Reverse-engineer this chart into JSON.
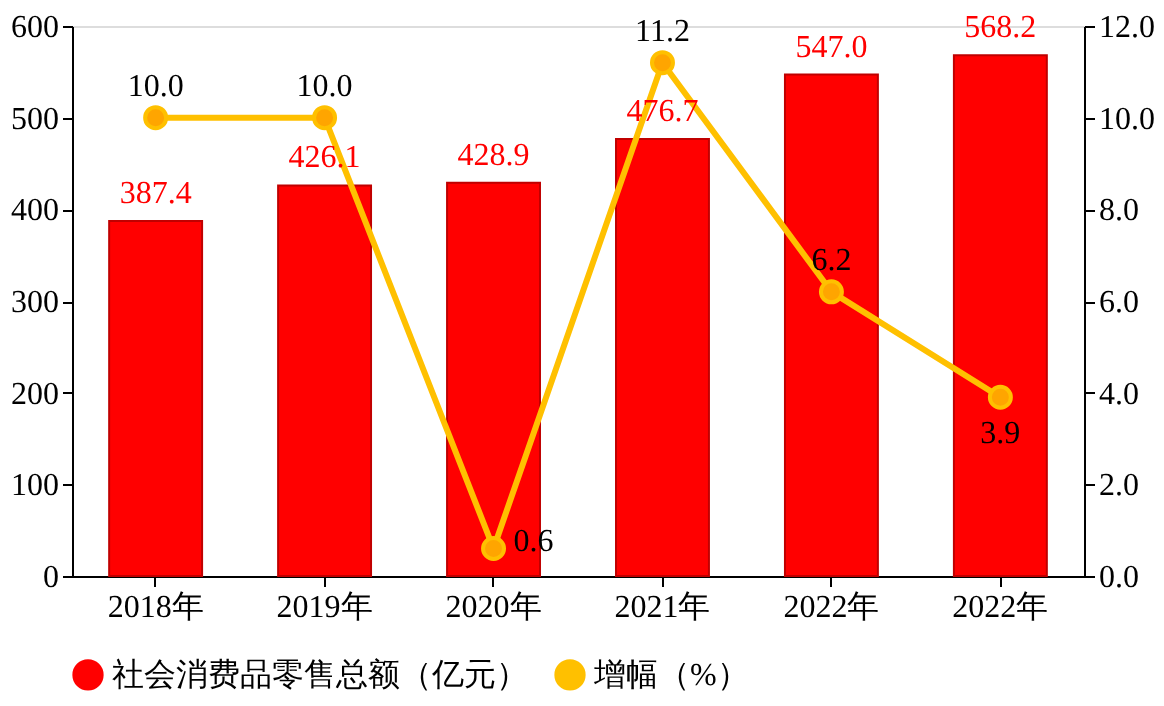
{
  "chart_data": {
    "type": "bar",
    "categories": [
      "2018年",
      "2019年",
      "2020年",
      "2021年",
      "2022年",
      "2022年"
    ],
    "series": [
      {
        "name": "社会消费品零售总额（亿元）",
        "color": "#ff0000",
        "values": [
          387.4,
          426.1,
          428.9,
          476.7,
          547.0,
          568.2
        ],
        "value_labels": [
          "387.4",
          "426.1",
          "428.9",
          "476.7",
          "547.0",
          "568.2"
        ]
      },
      {
        "name": "增幅（%）",
        "type": "line",
        "axis": "y2",
        "color": "#ffc000",
        "values": [
          10.0,
          10.0,
          0.6,
          11.2,
          6.2,
          3.9
        ],
        "value_labels": [
          "10.0",
          "10.0",
          "0.6",
          "11.2",
          "6.2",
          "3.9"
        ]
      }
    ],
    "ylim": [
      0,
      600
    ],
    "yticks": [
      0,
      100,
      200,
      300,
      400,
      500,
      600
    ],
    "y2lim": [
      0,
      12
    ],
    "y2ticks": [
      {
        "value": 0,
        "label": "0.0"
      },
      {
        "value": 2,
        "label": "2.0"
      },
      {
        "value": 4,
        "label": "4.0"
      },
      {
        "value": 6,
        "label": "6.0"
      },
      {
        "value": 8,
        "label": "8.0"
      },
      {
        "value": 10,
        "label": "10.0"
      },
      {
        "value": 12,
        "label": "12.0"
      }
    ],
    "marker": "circle",
    "grid": false,
    "legend": "bottom"
  }
}
